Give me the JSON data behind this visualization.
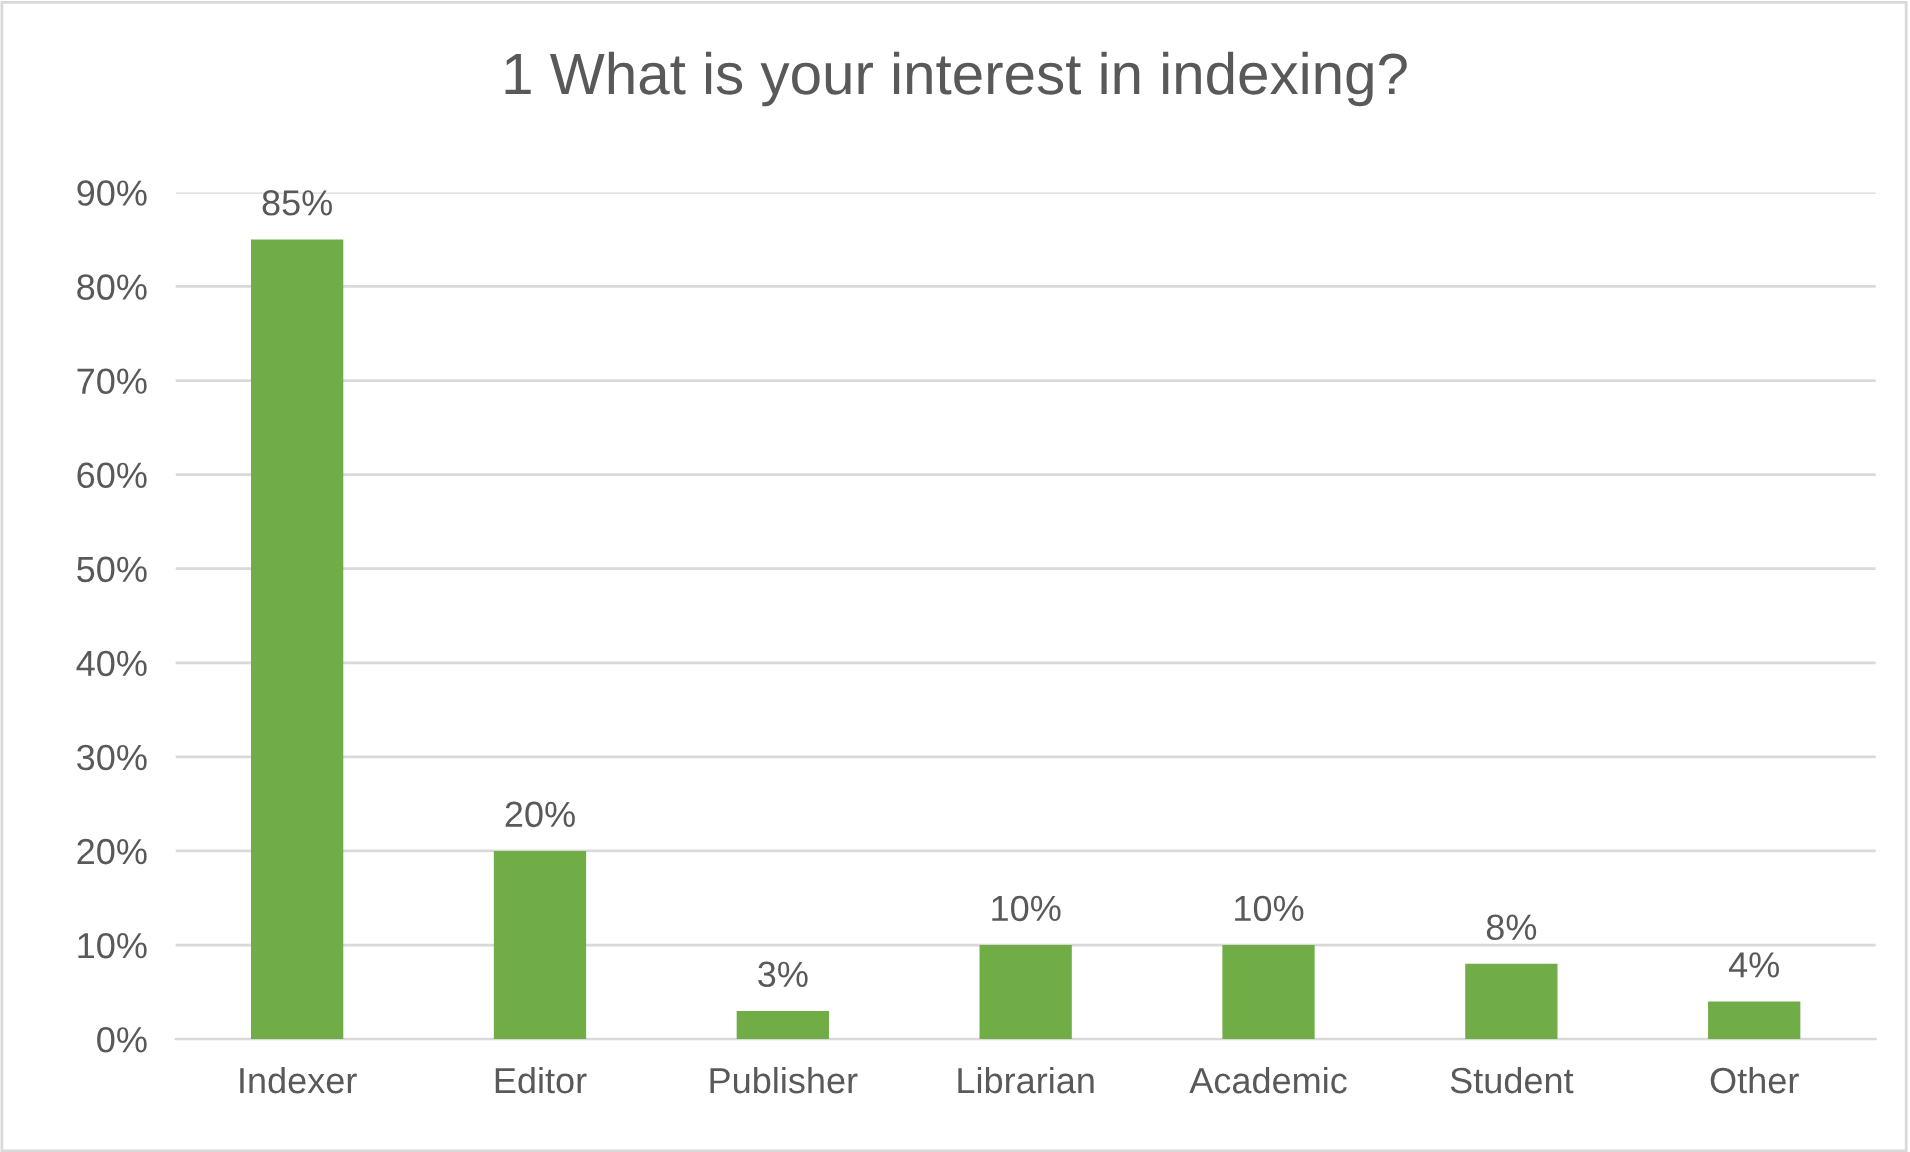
{
  "chart_data": {
    "type": "bar",
    "title": "1 What is your interest in indexing?",
    "categories": [
      "Indexer",
      "Editor",
      "Publisher",
      "Librarian",
      "Academic",
      "Student",
      "Other"
    ],
    "values": [
      85,
      20,
      3,
      10,
      10,
      8,
      4
    ],
    "value_labels": [
      "85%",
      "20%",
      "3%",
      "10%",
      "10%",
      "8%",
      "4%"
    ],
    "color": "#70ad47",
    "ylim": [
      0,
      90
    ],
    "yticks": [
      {
        "value": 0,
        "label": "0%"
      },
      {
        "value": 10,
        "label": "10%"
      },
      {
        "value": 20,
        "label": "20%"
      },
      {
        "value": 30,
        "label": "30%"
      },
      {
        "value": 40,
        "label": "40%"
      },
      {
        "value": 50,
        "label": "50%"
      },
      {
        "value": 60,
        "label": "60%"
      },
      {
        "value": 70,
        "label": "70%"
      },
      {
        "value": 80,
        "label": "80%"
      },
      {
        "value": 90,
        "label": "90%"
      }
    ],
    "grid": "y"
  }
}
